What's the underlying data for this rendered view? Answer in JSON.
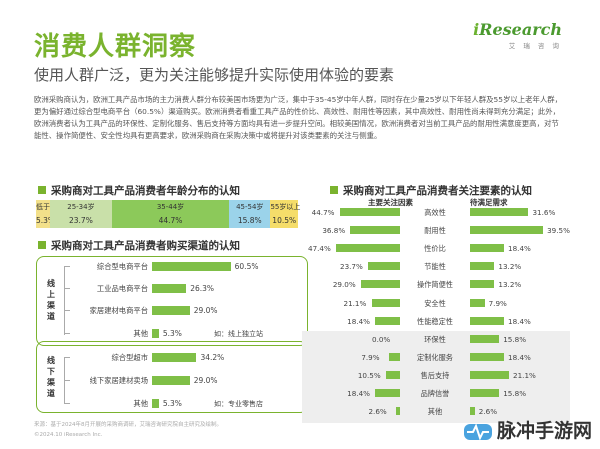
{
  "header": {
    "title": "消费人群洞察",
    "subtitle": "使用人群广泛，更为关注能够提升实际使用体验的要素",
    "brand_i": "i",
    "brand_name": "Research",
    "brand_cn": "艾 瑞 咨 询"
  },
  "body_text": "欧洲采购商认为，欧洲工具产品市场的主力消费人群分布较美国市场更为广泛，集中于35-45岁中年人群，同时存在少量25岁以下年轻人群及55岁以上老年人群，更为偏好通过综合型电商平台（60.5%）渠道购买。欧洲消费者看重工具产品的性价比、高效性、耐用性等因素，其中高效性、耐用性尚未得到充分满足；此外，欧洲消费者认为工具产品的环保性、定制化服务、售后支持等方面均具有进一步提升空间。相较美国情况，欧洲消费者对当前工具产品的耐用性满意度更高，对节能性、操作简便性、安全性均具有更高要求，欧洲采购商在采购决策中或将提升对该类要素的关注与侧重。",
  "age_chart": {
    "title": "采购商对工具产品消费者年龄分布的认知",
    "segments": [
      {
        "label": "低于25岁",
        "value": "5.3%",
        "pct": 5.3,
        "color": "#f3e08a"
      },
      {
        "label": "25-34岁",
        "value": "23.7%",
        "pct": 23.7,
        "color": "#c9e0a9"
      },
      {
        "label": "35-44岁",
        "value": "44.7%",
        "pct": 44.7,
        "color": "#8cc95a"
      },
      {
        "label": "45-54岁",
        "value": "15.8%",
        "pct": 15.8,
        "color": "#9bd3ea"
      },
      {
        "label": "55岁以上",
        "value": "10.5%",
        "pct": 10.5,
        "color": "#f5dd6a"
      }
    ]
  },
  "channel_chart": {
    "title": "采购商对工具产品消费者购买渠道的认知",
    "online_label": "线上渠道",
    "offline_label": "线下渠道",
    "online": [
      {
        "label": "综合型电商平台",
        "value": "60.5%",
        "pct": 60.5
      },
      {
        "label": "工业品电商平台",
        "value": "26.3%",
        "pct": 26.3
      },
      {
        "label": "家居建材电商平台",
        "value": "29.0%",
        "pct": 29.0
      },
      {
        "label": "其他",
        "value": "5.3%",
        "pct": 5.3,
        "note": "如：线上独立站"
      }
    ],
    "offline": [
      {
        "label": "综合型超市",
        "value": "34.2%",
        "pct": 34.2
      },
      {
        "label": "线下家居建材卖场",
        "value": "29.0%",
        "pct": 29.0
      },
      {
        "label": "其他",
        "value": "5.3%",
        "pct": 5.3,
        "note": "如：专业零售店"
      }
    ]
  },
  "factors_chart": {
    "title": "采购商对工具产品消费者关注要素的认知",
    "left_head": "主要关注因素",
    "right_head": "待满足需求",
    "rows": [
      {
        "cat": "高效性",
        "left": "44.7%",
        "left_pct": 44.7,
        "right": "31.6%",
        "right_pct": 31.6,
        "shade": false
      },
      {
        "cat": "耐用性",
        "left": "36.8%",
        "left_pct": 36.8,
        "right": "39.5%",
        "right_pct": 39.5,
        "shade": false
      },
      {
        "cat": "性价比",
        "left": "47.4%",
        "left_pct": 47.4,
        "right": "18.4%",
        "right_pct": 18.4,
        "shade": false
      },
      {
        "cat": "节能性",
        "left": "23.7%",
        "left_pct": 23.7,
        "right": "13.2%",
        "right_pct": 13.2,
        "shade": false
      },
      {
        "cat": "操作简便性",
        "left": "29.0%",
        "left_pct": 29.0,
        "right": "13.2%",
        "right_pct": 13.2,
        "shade": false
      },
      {
        "cat": "安全性",
        "left": "21.1%",
        "left_pct": 21.1,
        "right": "7.9%",
        "right_pct": 7.9,
        "shade": false
      },
      {
        "cat": "性能稳定性",
        "left": "18.4%",
        "left_pct": 18.4,
        "right": "18.4%",
        "right_pct": 18.4,
        "shade": false
      },
      {
        "cat": "环保性",
        "left": "0.0%",
        "left_pct": 0.0,
        "right": "15.8%",
        "right_pct": 15.8,
        "shade": true
      },
      {
        "cat": "定制化服务",
        "left": "7.9%",
        "left_pct": 7.9,
        "right": "18.4%",
        "right_pct": 18.4,
        "shade": true
      },
      {
        "cat": "售后支持",
        "left": "10.5%",
        "left_pct": 10.5,
        "right": "21.1%",
        "right_pct": 21.1,
        "shade": true
      },
      {
        "cat": "品牌信誉",
        "left": "18.4%",
        "left_pct": 18.4,
        "right": "15.8%",
        "right_pct": 15.8,
        "shade": true
      },
      {
        "cat": "其他",
        "left": "2.6%",
        "left_pct": 2.6,
        "right": "2.6%",
        "right_pct": 2.6,
        "shade": true
      }
    ]
  },
  "footer": {
    "source": "来源：基于2024年8月开展的采购商调研，艾瑞咨询研究院自主研究及绘制。",
    "copyright": "©2024.10 iResearch Inc.",
    "watermark": "脉冲手游网"
  }
}
